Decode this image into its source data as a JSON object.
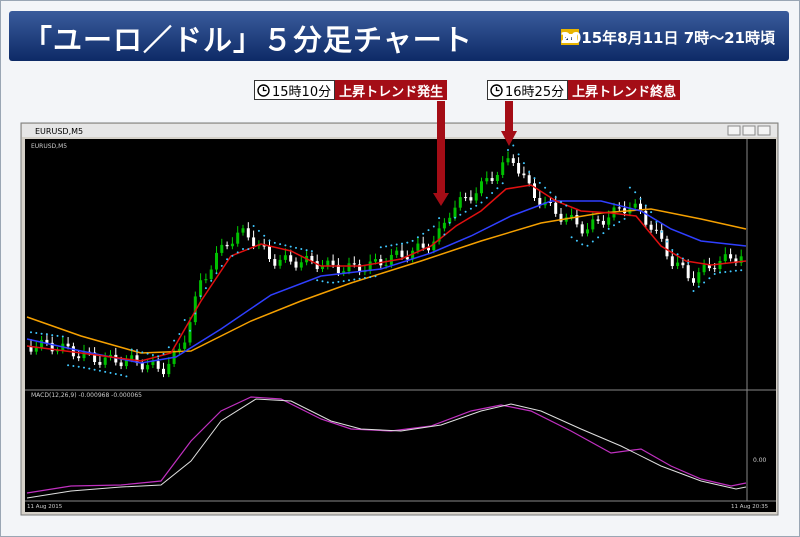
{
  "header": {
    "title": "「ユーロ／ドル」５分足チャート",
    "date": "2015年8月11日 7時～21時頃"
  },
  "annotations": [
    {
      "time": "15時10分",
      "label": "上昇トレンド発生"
    },
    {
      "time": "16時25分",
      "label": "上昇トレンド終息"
    }
  ],
  "chart": {
    "window_title": "EURUSD,M5",
    "symbol_line": "EURUSD,M5",
    "indicator_line": "MACD(12,26,9) -0.000968 -0.000065",
    "macd_zero": "0.00",
    "time_start": "11 Aug 2015",
    "time_end": "11 Aug 20:35"
  }
}
